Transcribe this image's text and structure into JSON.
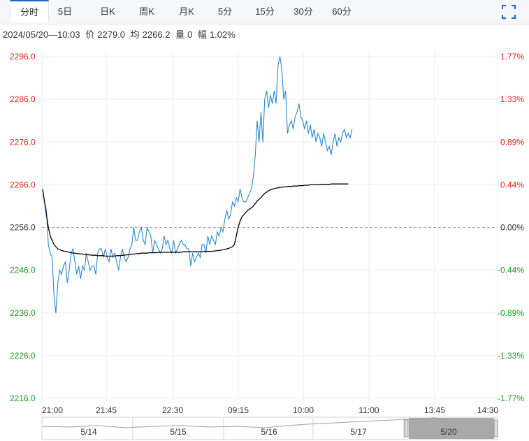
{
  "tabs": [
    {
      "label": "分时",
      "active": true
    },
    {
      "label": "5日",
      "active": false
    },
    {
      "label": "日K",
      "active": false
    },
    {
      "label": "周K",
      "active": false
    },
    {
      "label": "月K",
      "active": false
    },
    {
      "label": "5分",
      "active": false
    },
    {
      "label": "15分",
      "active": false
    },
    {
      "label": "30分",
      "active": false
    },
    {
      "label": "60分",
      "active": false
    }
  ],
  "fullscreen_icon": "fullscreen-icon",
  "info": {
    "datetime": "2024/05/20—10:03",
    "price_label": "价",
    "price": "2279.0",
    "avg_label": "均",
    "avg": "2266.2",
    "vol_label": "量",
    "vol": "0",
    "chg_label": "幅",
    "chg": "1.02%"
  },
  "chart_data": {
    "type": "line",
    "prev_close": 2256.0,
    "ylim": [
      2216.0,
      2296.0
    ],
    "y_ticks_left": [
      "2296.0",
      "2286.0",
      "2276.0",
      "2266.0",
      "2256.0",
      "2246.0",
      "2236.0",
      "2226.0",
      "2216.0"
    ],
    "y_ticks_right": [
      "1.77%",
      "1.33%",
      "0.89%",
      "0.44%",
      "0.00%",
      "-0.44%",
      "-0.89%",
      "-1.33%",
      "-1.77%"
    ],
    "x_ticks": [
      "21:00",
      "21:45",
      "22:30",
      "09:15",
      "10:00",
      "11:00",
      "13:45",
      "14:30"
    ],
    "session_slots": 240,
    "colors": {
      "price": "#2b88c8",
      "avg": "#000000",
      "up": "#e0241b",
      "down": "#1f9a1f",
      "flat": "#333333",
      "grid": "#ececec",
      "baseline": "#aaaaaa"
    },
    "series": [
      {
        "values": [
          2265.0,
          2262.0,
          2260.0,
          2252.0,
          2250.0,
          2249.0,
          2240.0,
          2236.0,
          2243.0,
          2246.0,
          2245.0,
          2247.0,
          2248.0,
          2243.0,
          2246.0,
          2250.0,
          2251.0,
          2248.0,
          2245.0,
          2247.0,
          2244.0,
          2247.0,
          2246.0,
          2250.0,
          2248.0,
          2246.0,
          2247.0,
          2247.0,
          2245.0,
          2250.0,
          2251.0,
          2251.0,
          2249.0,
          2251.0,
          2249.0,
          2248.0,
          2251.0,
          2249.0,
          2250.0,
          2248.0,
          2246.0,
          2249.0,
          2251.0,
          2249.0,
          2248.0,
          2249.0,
          2251.0,
          2252.0,
          2256.0,
          2253.0,
          2253.0,
          2255.0,
          2256.0,
          2253.0,
          2252.0,
          2256.0,
          2255.0,
          2254.0,
          2250.0,
          2253.0,
          2252.0,
          2251.0,
          2250.0,
          2251.0,
          2254.0,
          2252.0,
          2253.0,
          2251.0,
          2250.0,
          2253.0,
          2250.0,
          2251.0,
          2252.0,
          2253.0,
          2252.0,
          2252.0,
          2251.0,
          2251.0,
          2247.0,
          2250.0,
          2248.0,
          2249.0,
          2250.0,
          2249.0,
          2252.0,
          2252.0,
          2250.0,
          2254.0,
          2252.0,
          2254.0,
          2253.0,
          2252.0,
          2255.0,
          2254.0,
          2256.0,
          2255.0,
          2258.0,
          2260.0,
          2258.0,
          2259.0,
          2262.0,
          2261.0,
          2263.0,
          2262.0,
          2265.0,
          2263.0,
          2262.0,
          2262.0,
          2263.0,
          2264.0,
          2265.0,
          2268.0,
          2273.0,
          2281.0,
          2276.0,
          2283.0,
          2276.0,
          2286.0,
          2288.0,
          2284.0,
          2287.0,
          2285.0,
          2288.0,
          2285.0,
          2294.0,
          2296.0,
          2293.0,
          2286.0,
          2288.0,
          2278.0,
          2280.0,
          2281.0,
          2279.0,
          2282.0,
          2283.0,
          2285.0,
          2282.0,
          2281.0,
          2279.0,
          2281.0,
          2278.0,
          2280.0,
          2277.0,
          2279.0,
          2276.0,
          2278.0,
          2277.0,
          2275.0,
          2278.0,
          2276.0,
          2274.0,
          2275.0,
          2273.0,
          2276.0,
          2278.0,
          2275.0,
          2277.0,
          2276.0,
          2278.0,
          2279.0,
          2277.0,
          2278.0,
          2277.0,
          2279.0
        ]
      },
      {
        "values": [
          2265.0,
          2262.0,
          2259.0,
          2256.0,
          2254.0,
          2253.0,
          2252.0,
          2251.5,
          2251.0,
          2250.8,
          2250.6,
          2250.5,
          2250.4,
          2250.3,
          2250.2,
          2250.1,
          2250.0,
          2250.0,
          2249.9,
          2249.9,
          2249.8,
          2249.8,
          2249.7,
          2249.7,
          2249.6,
          2249.6,
          2249.5,
          2249.5,
          2249.5,
          2249.4,
          2249.4,
          2249.4,
          2249.4,
          2249.3,
          2249.3,
          2249.3,
          2249.3,
          2249.3,
          2249.3,
          2249.4,
          2249.4,
          2249.4,
          2249.5,
          2249.5,
          2249.6,
          2249.6,
          2249.7,
          2249.7,
          2249.8,
          2249.8,
          2249.9,
          2249.9,
          2250.0,
          2250.0,
          2250.0,
          2250.0,
          2250.1,
          2250.1,
          2250.1,
          2250.1,
          2250.1,
          2250.2,
          2250.2,
          2250.2,
          2250.2,
          2250.2,
          2250.2,
          2250.2,
          2250.2,
          2250.2,
          2250.2,
          2250.2,
          2250.2,
          2250.2,
          2250.3,
          2250.3,
          2250.3,
          2250.3,
          2250.3,
          2250.3,
          2250.3,
          2250.3,
          2250.3,
          2250.3,
          2250.3,
          2250.4,
          2250.4,
          2250.4,
          2250.4,
          2250.4,
          2250.5,
          2250.5,
          2250.6,
          2250.6,
          2250.7,
          2250.8,
          2250.9,
          2251.0,
          2251.1,
          2251.3,
          2251.5,
          2252.0,
          2254.0,
          2256.0,
          2257.5,
          2258.5,
          2259.0,
          2259.5,
          2260.0,
          2260.3,
          2260.6,
          2261.0,
          2261.6,
          2262.2,
          2262.6,
          2263.0,
          2263.5,
          2264.0,
          2264.3,
          2264.6,
          2264.8,
          2265.0,
          2265.1,
          2265.2,
          2265.3,
          2265.4,
          2265.4,
          2265.5,
          2265.5,
          2265.6,
          2265.6,
          2265.6,
          2265.7,
          2265.7,
          2265.7,
          2265.8,
          2265.8,
          2265.8,
          2265.9,
          2265.9,
          2265.9,
          2266.0,
          2266.0,
          2266.0,
          2266.0,
          2266.0,
          2266.1,
          2266.1,
          2266.1,
          2266.1,
          2266.1,
          2266.1,
          2266.2,
          2266.2,
          2266.2,
          2266.2,
          2266.2,
          2266.2,
          2266.2,
          2266.2,
          2266.2,
          2266.2
        ]
      }
    ],
    "navigator": {
      "labels": [
        "5/14",
        "5/15",
        "5/16",
        "5/17",
        "5/20"
      ],
      "selected": "5/20"
    }
  }
}
